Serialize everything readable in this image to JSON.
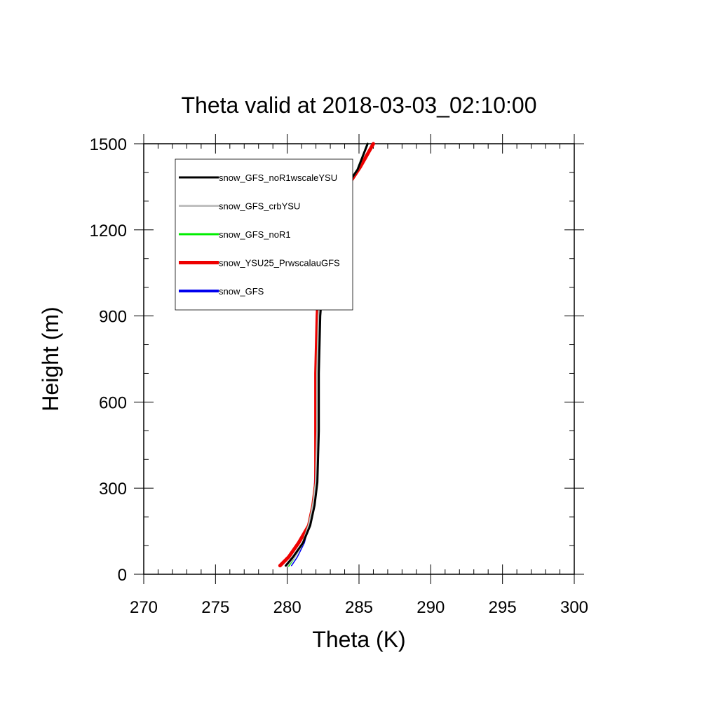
{
  "chart_data": {
    "type": "line",
    "title": "Theta valid at 2018-03-03_02:10:00",
    "xlabel": "Theta (K)",
    "ylabel": "Height (m)",
    "xlim": [
      270,
      300
    ],
    "ylim": [
      0,
      1500
    ],
    "xticks": [
      270,
      275,
      280,
      285,
      290,
      295,
      300
    ],
    "yticks": [
      0,
      300,
      600,
      900,
      1200,
      1500
    ],
    "grid": false,
    "legend_position": "top-left",
    "series": [
      {
        "name": "snow_GFS_noR1wscaleYSU",
        "color": "#000000",
        "points": [
          [
            279.9,
            30
          ],
          [
            280.4,
            60
          ],
          [
            281.1,
            110
          ],
          [
            281.6,
            170
          ],
          [
            281.9,
            240
          ],
          [
            282.1,
            320
          ],
          [
            282.2,
            500
          ],
          [
            282.2,
            700
          ],
          [
            282.3,
            900
          ],
          [
            282.6,
            1100
          ],
          [
            283.4,
            1300
          ],
          [
            284.9,
            1410
          ],
          [
            285.6,
            1500
          ]
        ]
      },
      {
        "name": "snow_GFS_crbYSU",
        "color": "#c0c0c0",
        "points": [
          [
            280.0,
            30
          ],
          [
            280.5,
            60
          ],
          [
            281.1,
            110
          ],
          [
            281.5,
            170
          ],
          [
            281.8,
            240
          ],
          [
            282.0,
            320
          ],
          [
            282.1,
            500
          ],
          [
            282.1,
            700
          ],
          [
            282.2,
            900
          ],
          [
            282.5,
            1100
          ],
          [
            283.4,
            1300
          ],
          [
            284.9,
            1410
          ],
          [
            285.6,
            1500
          ]
        ]
      },
      {
        "name": "snow_GFS_noR1",
        "color": "#00ee00",
        "points": [
          [
            280.1,
            30
          ],
          [
            280.5,
            60
          ],
          [
            281.1,
            110
          ],
          [
            281.5,
            170
          ],
          [
            281.8,
            240
          ],
          [
            282.0,
            320
          ],
          [
            282.1,
            500
          ],
          [
            282.1,
            700
          ],
          [
            282.2,
            900
          ],
          [
            282.5,
            1100
          ],
          [
            283.4,
            1300
          ],
          [
            284.9,
            1410
          ],
          [
            285.6,
            1500
          ]
        ]
      },
      {
        "name": "snow_YSU25_PrwscalauGFS",
        "color": "#ee0000",
        "points": [
          [
            279.5,
            30
          ],
          [
            280.1,
            60
          ],
          [
            280.8,
            110
          ],
          [
            281.5,
            170
          ],
          [
            281.8,
            240
          ],
          [
            282.0,
            320
          ],
          [
            282.0,
            500
          ],
          [
            282.0,
            700
          ],
          [
            282.1,
            900
          ],
          [
            282.3,
            1100
          ],
          [
            283.5,
            1300
          ],
          [
            285.1,
            1420
          ],
          [
            286.0,
            1500
          ]
        ]
      },
      {
        "name": "snow_GFS",
        "color": "#0000ee",
        "points": [
          [
            280.3,
            30
          ],
          [
            280.7,
            60
          ],
          [
            281.2,
            110
          ],
          [
            281.5,
            170
          ],
          [
            281.8,
            240
          ],
          [
            281.9,
            320
          ],
          [
            282.0,
            500
          ],
          [
            282.1,
            700
          ],
          [
            282.2,
            900
          ],
          [
            282.5,
            1100
          ],
          [
            283.4,
            1300
          ],
          [
            284.9,
            1410
          ],
          [
            285.6,
            1500
          ]
        ]
      }
    ]
  }
}
